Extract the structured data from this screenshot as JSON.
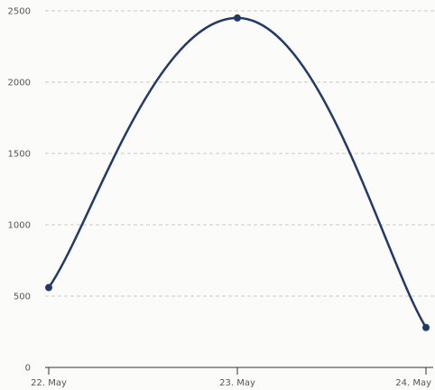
{
  "chart_data": {
    "type": "line",
    "smooth": true,
    "title": "",
    "xlabel": "",
    "ylabel": "",
    "categories": [
      "22. May",
      "23. May",
      "24. May"
    ],
    "series": [
      {
        "values": [
          560,
          2450,
          280
        ],
        "color": "#233a66"
      }
    ],
    "ylim": [
      0,
      2500
    ],
    "y_ticks": [
      0,
      500,
      1000,
      1500,
      2000,
      2500
    ],
    "y_tick_labels": [
      "0",
      "500",
      "1000",
      "1500",
      "2000",
      "2500"
    ],
    "grid": true,
    "grid_style": "dashed",
    "legend": "none"
  }
}
